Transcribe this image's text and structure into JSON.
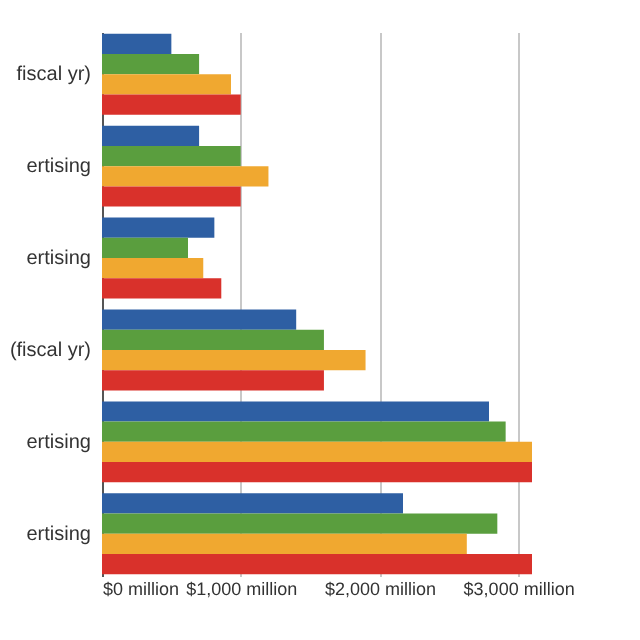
{
  "chart_data": {
    "type": "bar",
    "orientation": "horizontal",
    "categories": [
      "fiscal yr)",
      "ertising",
      "ertising",
      "(fiscal yr)",
      "ertising",
      "ertising"
    ],
    "series": [
      {
        "color": "#2e5fa3",
        "values": [
          500,
          700,
          810,
          1400,
          2790,
          2170
        ]
      },
      {
        "color": "#5a9e3e",
        "values": [
          700,
          1000,
          620,
          1600,
          2910,
          2850
        ]
      },
      {
        "color": "#f0a830",
        "values": [
          930,
          1200,
          730,
          1900,
          3100,
          2630
        ]
      },
      {
        "color": "#d9312b",
        "values": [
          1000,
          1000,
          860,
          1600,
          3100,
          3100
        ]
      }
    ],
    "xlim": [
      0,
      3100
    ],
    "xticks": [
      {
        "value": 0,
        "label": "$0 million"
      },
      {
        "value": 1000,
        "label": "$1,000 million"
      },
      {
        "value": 2000,
        "label": "$2,000 million"
      },
      {
        "value": 3000,
        "label": "$3,000 million"
      }
    ],
    "grid": "x"
  }
}
